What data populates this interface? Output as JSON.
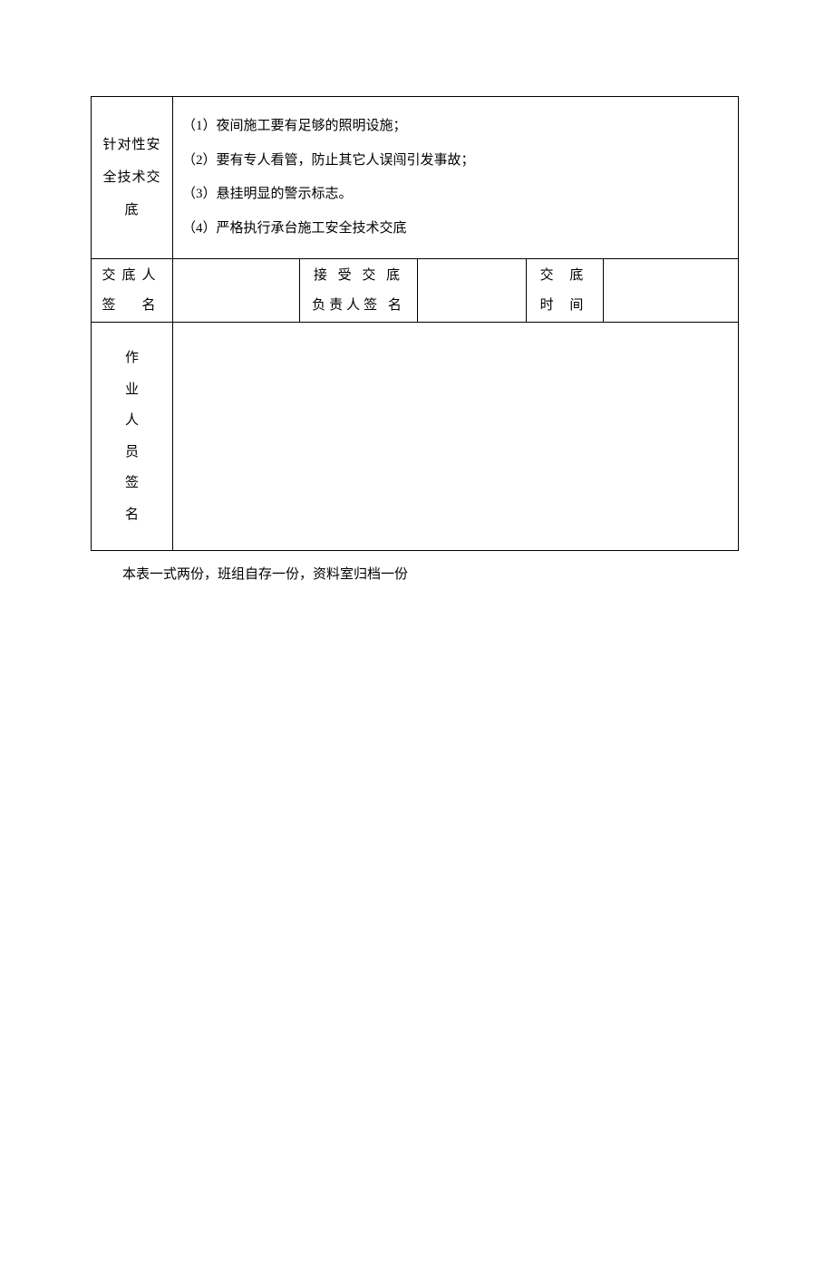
{
  "colors": {
    "text": "#000000",
    "border": "#000000",
    "background": "#ffffff"
  },
  "typography": {
    "font_family": "SimSun",
    "base_fontsize": 15
  },
  "table": {
    "row1": {
      "label": "针对性安全技术交底",
      "content_lines": [
        "（1）夜间施工要有足够的照明设施；",
        "（2）要有专人看管，防止其它人误闯引发事故；",
        "（3）悬挂明显的警示标志。",
        "（4）严格执行承台施工安全技术交底"
      ]
    },
    "row2": {
      "col1_line1": "交底人",
      "col1_line2": "签　名",
      "col2_value": "",
      "col3_line1": "接 受 交 底",
      "col3_line2": "负责人签 名",
      "col4_value": "",
      "col5_line1": "交 底",
      "col5_line2": "时 间",
      "col6_value": ""
    },
    "row3": {
      "label_chars": [
        "作",
        "业",
        "人",
        "员",
        "签",
        "名"
      ],
      "value": ""
    }
  },
  "footnote": "本表一式两份，班组自存一份，资料室归档一份"
}
